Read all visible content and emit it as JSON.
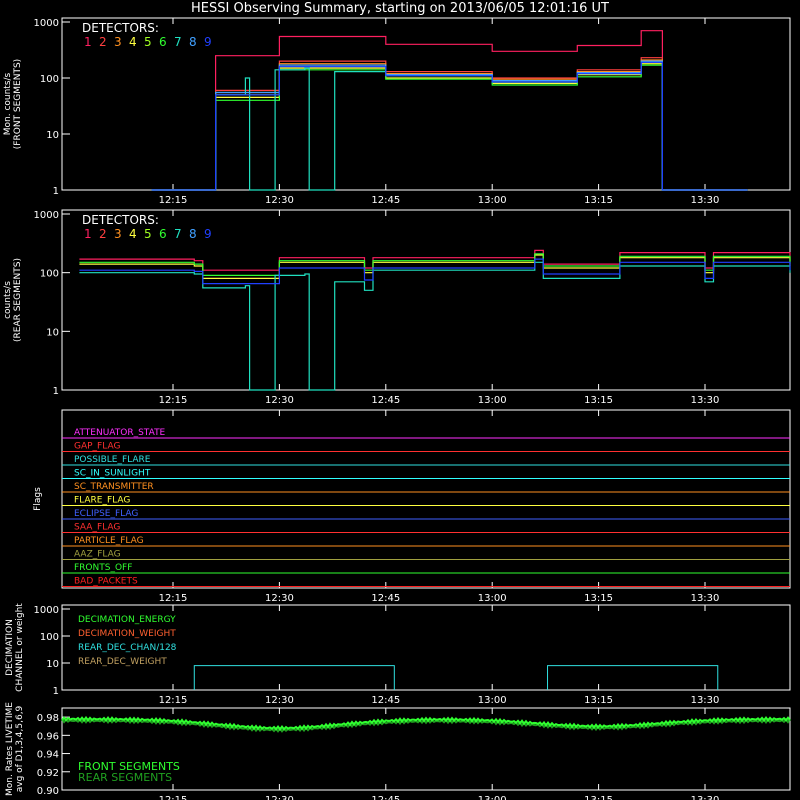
{
  "title": "HESSI Observing Summary, starting on 2013/06/05 12:01:16 UT",
  "time_ticks": [
    "12:15",
    "12:30",
    "12:45",
    "13:00",
    "13:15",
    "13:30"
  ],
  "detector_colors": [
    "#ff2060",
    "#ff4040",
    "#ff9020",
    "#ffff40",
    "#a0ff20",
    "#30ff30",
    "#20e0c0",
    "#40a0ff",
    "#2040ff"
  ],
  "chart_data": [
    {
      "type": "line",
      "panel": "front",
      "ylabel": "Mon. counts/s\n(FRONT SEGMENTS)",
      "ylog": true,
      "ylim": [
        1,
        1000
      ],
      "yticks": [
        "1",
        "10",
        "100",
        "1000"
      ],
      "xlim": [
        "12:01:16",
        "13:41:30"
      ],
      "legend_title": "DETECTORS:",
      "legend_labels": [
        "1",
        "2",
        "3",
        "4",
        "5",
        "6",
        "7",
        "8",
        "9"
      ],
      "series": [
        {
          "label": "1",
          "color": "#ff2060",
          "t": [
            12.2,
            12.35,
            12.5,
            12.75,
            13.0,
            13.2,
            13.35,
            13.4,
            13.6
          ],
          "v": [
            1,
            250,
            550,
            400,
            300,
            380,
            700,
            1,
            1
          ]
        },
        {
          "label": "2",
          "color": "#ff4040",
          "t": [
            12.2,
            12.35,
            12.5,
            12.75,
            13.0,
            13.2,
            13.35,
            13.4,
            13.6
          ],
          "v": [
            1,
            60,
            200,
            130,
            100,
            140,
            230,
            1,
            1
          ]
        },
        {
          "label": "3",
          "color": "#ff9020",
          "t": [
            12.2,
            12.35,
            12.5,
            12.75,
            13.0,
            13.2,
            13.35,
            13.4,
            13.6
          ],
          "v": [
            1,
            55,
            180,
            120,
            95,
            130,
            210,
            1,
            1
          ]
        },
        {
          "label": "4",
          "color": "#ffff40",
          "t": [
            12.2,
            12.35,
            12.5,
            12.75,
            13.0,
            13.2,
            13.35,
            13.4,
            13.6
          ],
          "v": [
            1,
            45,
            150,
            100,
            80,
            115,
            180,
            1,
            1
          ]
        },
        {
          "label": "5",
          "color": "#a0ff20",
          "t": [
            12.2,
            12.35,
            12.5,
            12.75,
            13.0,
            13.2,
            13.35,
            13.4,
            13.6
          ],
          "v": [
            1,
            50,
            160,
            110,
            85,
            120,
            190,
            1,
            1
          ]
        },
        {
          "label": "6",
          "color": "#30ff30",
          "t": [
            12.2,
            12.35,
            12.5,
            12.75,
            13.0,
            13.2,
            13.35,
            13.4,
            13.6
          ],
          "v": [
            1,
            40,
            140,
            95,
            75,
            105,
            170,
            1,
            1
          ]
        },
        {
          "label": "7",
          "color": "#20e0c0",
          "t": [
            12.2,
            12.35,
            12.42,
            12.43,
            12.48,
            12.49,
            12.56,
            12.57,
            12.62,
            12.63,
            12.75,
            13.0,
            13.2,
            13.35,
            13.4,
            13.6
          ],
          "v": [
            1,
            50,
            100,
            1,
            1,
            140,
            150,
            1,
            1,
            130,
            110,
            85,
            120,
            200,
            1,
            1
          ]
        },
        {
          "label": "8",
          "color": "#40a0ff",
          "t": [
            12.2,
            12.35,
            12.5,
            12.75,
            13.0,
            13.2,
            13.35,
            13.4,
            13.6
          ],
          "v": [
            1,
            55,
            170,
            115,
            90,
            125,
            200,
            1,
            1
          ]
        },
        {
          "label": "9",
          "color": "#2040ff",
          "t": [
            12.2,
            12.35,
            12.5,
            12.75,
            13.0,
            13.2,
            13.35,
            13.4,
            13.6
          ],
          "v": [
            1,
            50,
            160,
            110,
            85,
            120,
            190,
            1,
            1
          ]
        }
      ]
    },
    {
      "type": "line",
      "panel": "rear",
      "ylabel": "counts/s\n(REAR SEGMENTS)",
      "ylog": true,
      "ylim": [
        1,
        1000
      ],
      "yticks": [
        "1",
        "10",
        "100",
        "1000"
      ],
      "xlim": [
        "12:01:16",
        "13:41:30"
      ],
      "legend_title": "DETECTORS:",
      "legend_labels": [
        "1",
        "2",
        "3",
        "4",
        "5",
        "6",
        "7",
        "8",
        "9"
      ],
      "series": [
        {
          "label": "1",
          "color": "#ff2060",
          "t": [
            12.03,
            12.3,
            12.32,
            12.5,
            12.7,
            12.72,
            13.1,
            13.12,
            13.3,
            13.5,
            13.52,
            13.7
          ],
          "v": [
            170,
            160,
            110,
            180,
            120,
            180,
            240,
            140,
            220,
            120,
            220,
            160
          ]
        },
        {
          "label": "4",
          "color": "#ffff40",
          "t": [
            12.03,
            12.3,
            12.32,
            12.5,
            12.7,
            12.72,
            13.1,
            13.12,
            13.3,
            13.5,
            13.52,
            13.7
          ],
          "v": [
            140,
            130,
            80,
            150,
            100,
            150,
            200,
            120,
            180,
            100,
            180,
            130
          ]
        },
        {
          "label": "6",
          "color": "#30ff30",
          "t": [
            12.03,
            12.3,
            12.32,
            12.5,
            12.7,
            12.72,
            13.1,
            13.12,
            13.3,
            13.5,
            13.52,
            13.7
          ],
          "v": [
            150,
            140,
            90,
            160,
            110,
            160,
            210,
            130,
            190,
            110,
            190,
            140
          ]
        },
        {
          "label": "7",
          "color": "#20e0c0",
          "t": [
            12.03,
            12.3,
            12.32,
            12.42,
            12.43,
            12.48,
            12.49,
            12.56,
            12.57,
            12.62,
            12.63,
            12.7,
            12.72,
            13.1,
            13.12,
            13.3,
            13.5,
            13.52,
            13.7
          ],
          "v": [
            100,
            95,
            55,
            60,
            1,
            1,
            90,
            95,
            1,
            1,
            70,
            50,
            110,
            150,
            80,
            130,
            70,
            130,
            100
          ]
        },
        {
          "label": "9",
          "color": "#2040ff",
          "t": [
            12.03,
            12.3,
            12.32,
            12.5,
            12.7,
            12.72,
            13.1,
            13.12,
            13.3,
            13.5,
            13.52,
            13.7
          ],
          "v": [
            110,
            105,
            65,
            120,
            75,
            120,
            170,
            95,
            150,
            80,
            150,
            110
          ]
        }
      ]
    },
    {
      "type": "line",
      "panel": "flags",
      "ylabel": "Flags",
      "flags": [
        {
          "name": "ATTENUATOR_STATE",
          "color": "#ff30ff"
        },
        {
          "name": "GAP_FLAG",
          "color": "#ff3030"
        },
        {
          "name": "POSSIBLE_FLARE",
          "color": "#30e0e0"
        },
        {
          "name": "SC_IN_SUNLIGHT",
          "color": "#30ffff"
        },
        {
          "name": "SC_TRANSMITTER",
          "color": "#ff9020"
        },
        {
          "name": "FLARE_FLAG",
          "color": "#ffff40"
        },
        {
          "name": "ECLIPSE_FLAG",
          "color": "#4060ff"
        },
        {
          "name": "SAA_FLAG",
          "color": "#ff3030"
        },
        {
          "name": "PARTICLE_FLAG",
          "color": "#ff9020"
        },
        {
          "name": "AAZ_FLAG",
          "color": "#a0a040"
        },
        {
          "name": "FRONTS_OFF",
          "color": "#30ff30"
        },
        {
          "name": "BAD_PACKETS",
          "color": "#ff2020"
        }
      ]
    },
    {
      "type": "line",
      "panel": "decimation",
      "ylabel": "DECIMATION\nCHANNEL or weight",
      "ylog": true,
      "ylim": [
        1,
        1000
      ],
      "yticks": [
        "1",
        "10",
        "100",
        "1000"
      ],
      "legend": [
        {
          "name": "DECIMATION_ENERGY",
          "color": "#30ff30"
        },
        {
          "name": "DECIMATION_WEIGHT",
          "color": "#ff6030"
        },
        {
          "name": "REAR_DEC_CHAN/128",
          "color": "#30e0e0"
        },
        {
          "name": "REAR_DEC_WEIGHT",
          "color": "#c0a060"
        }
      ]
    },
    {
      "type": "line",
      "panel": "livetime",
      "ylabel": "Mon. Rates LIVETIME\navg of D1,3,4,5,6,9",
      "ylim": [
        0.9,
        0.99
      ],
      "yticks": [
        "0.90",
        "0.92",
        "0.94",
        "0.96",
        "0.98"
      ],
      "legend": [
        {
          "name": "FRONT SEGMENTS",
          "color": "#30ff30"
        },
        {
          "name": "REAR SEGMENTS",
          "color": "#20a020"
        }
      ]
    }
  ]
}
